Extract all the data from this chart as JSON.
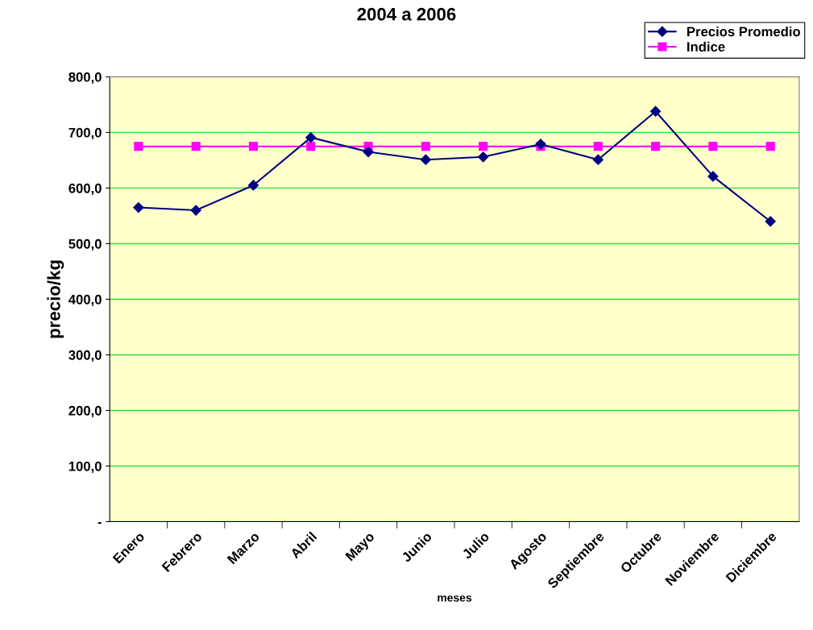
{
  "chart_data": {
    "type": "line",
    "title": "2004 a 2006",
    "xlabel": "meses",
    "ylabel": "precio/kg",
    "categories": [
      "Enero",
      "Febrero",
      "Marzo",
      "Abril",
      "Mayo",
      "Junio",
      "Julio",
      "Agosto",
      "Septiembre",
      "Octubre",
      "Noviembre",
      "Diciembre"
    ],
    "series": [
      {
        "name": "Precios Promedio",
        "color": "#000080",
        "marker": "diamond",
        "values": [
          565,
          560,
          605,
          691,
          665,
          651,
          656,
          679,
          651,
          738,
          621,
          540
        ]
      },
      {
        "name": "Indice",
        "color": "#ff00ff",
        "marker": "square",
        "values": [
          675,
          675,
          675,
          675,
          675,
          675,
          675,
          675,
          675,
          675,
          675,
          675
        ]
      }
    ],
    "ylim": [
      0,
      800
    ],
    "yticks": [
      {
        "value": 0,
        "label": "-"
      },
      {
        "value": 100,
        "label": "100,0"
      },
      {
        "value": 200,
        "label": "200,0"
      },
      {
        "value": 300,
        "label": "300,0"
      },
      {
        "value": 400,
        "label": "400,0"
      },
      {
        "value": 500,
        "label": "500,0"
      },
      {
        "value": 600,
        "label": "600,0"
      },
      {
        "value": 700,
        "label": "700,0"
      },
      {
        "value": 800,
        "label": "800,0"
      }
    ],
    "grid": "y",
    "legend": "top right",
    "line_style": "solid"
  }
}
